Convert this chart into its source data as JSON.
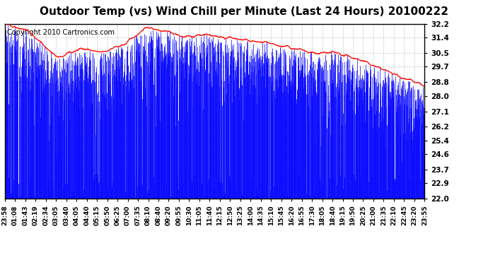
{
  "title": "Outdoor Temp (vs) Wind Chill per Minute (Last 24 Hours) 20100222",
  "copyright_text": "Copyright 2010 Cartronics.com",
  "y_min": 22.0,
  "y_max": 32.2,
  "y_ticks": [
    22.0,
    22.9,
    23.7,
    24.6,
    25.4,
    26.2,
    27.1,
    28.0,
    28.8,
    29.7,
    30.5,
    31.4,
    32.2
  ],
  "bar_color": "#0000FF",
  "line_color": "#FF0000",
  "background_color": "#FFFFFF",
  "plot_bg_color": "#FFFFFF",
  "title_fontsize": 11,
  "copyright_fontsize": 7,
  "x_tick_labels": [
    "23:58",
    "01:08",
    "01:43",
    "02:19",
    "02:34",
    "03:05",
    "03:40",
    "04:05",
    "04:40",
    "05:15",
    "05:50",
    "06:25",
    "07:00",
    "07:35",
    "08:10",
    "08:40",
    "09:20",
    "09:55",
    "10:30",
    "11:05",
    "11:40",
    "12:15",
    "12:50",
    "13:25",
    "14:00",
    "14:35",
    "15:10",
    "15:45",
    "16:20",
    "16:55",
    "17:30",
    "18:05",
    "18:40",
    "19:15",
    "19:50",
    "20:25",
    "21:00",
    "21:35",
    "22:10",
    "22:45",
    "23:20",
    "23:55"
  ],
  "num_points": 1440,
  "seed": 42,
  "envelope_points_x": [
    0,
    0.05,
    0.12,
    0.18,
    0.22,
    0.28,
    0.33,
    0.38,
    0.42,
    0.47,
    0.52,
    0.58,
    0.63,
    0.68,
    0.72,
    0.78,
    0.83,
    0.88,
    0.93,
    1.0
  ],
  "envelope_points_y": [
    32.2,
    31.8,
    30.2,
    30.8,
    30.5,
    31.0,
    32.0,
    31.8,
    31.4,
    31.6,
    31.4,
    31.2,
    31.0,
    30.8,
    30.5,
    30.5,
    30.2,
    29.7,
    29.2,
    28.5
  ]
}
